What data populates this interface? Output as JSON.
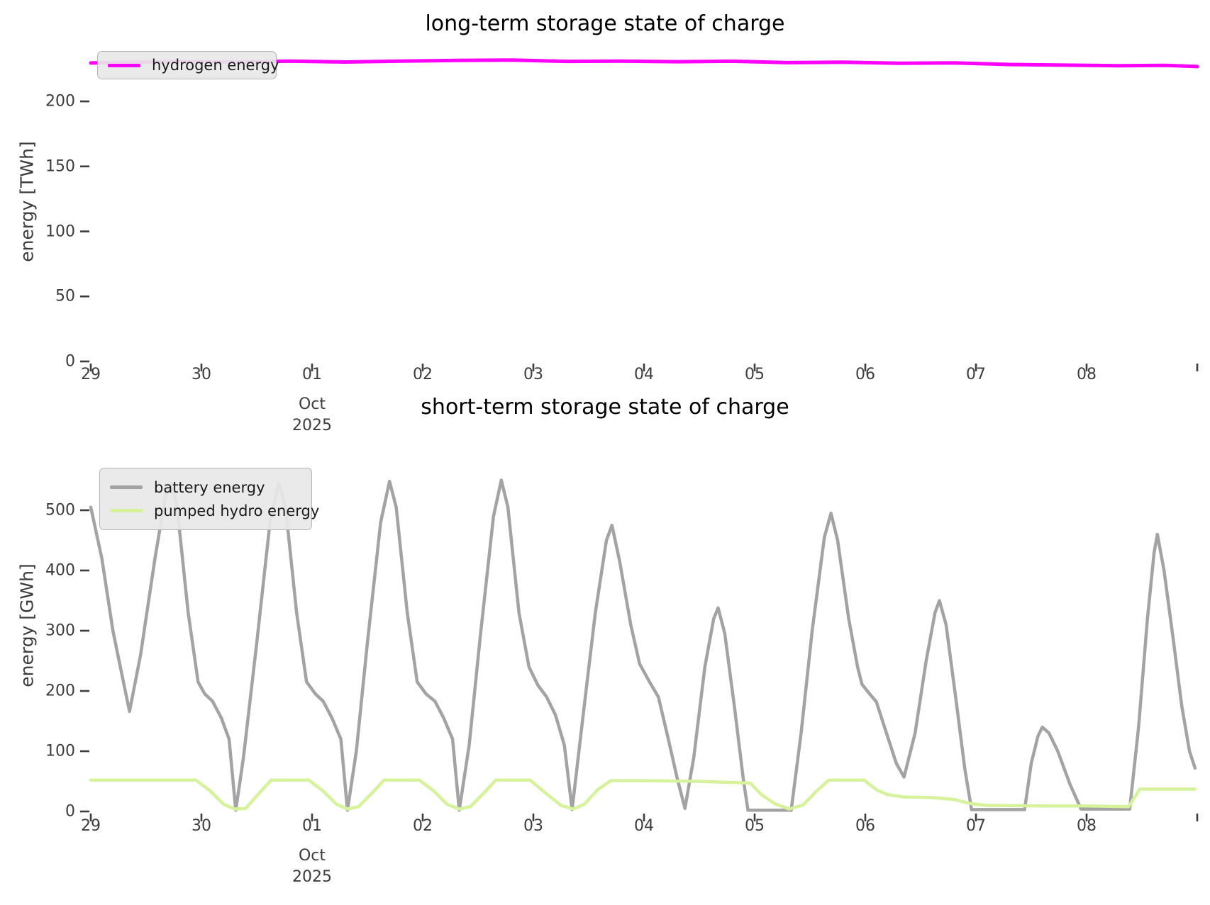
{
  "chart_data": [
    {
      "type": "line",
      "title": "long-term storage state of charge",
      "ylabel": "energy [TWh]",
      "ylim": [
        0,
        248
      ],
      "xlim_days": [
        0,
        10
      ],
      "grid": false,
      "legend_position": "upper left",
      "x_tick_labels": [
        "29",
        "30",
        "01",
        "02",
        "03",
        "04",
        "05",
        "06",
        "07",
        "08"
      ],
      "x_month_label": [
        "Oct",
        "2025"
      ],
      "x_month_under": "01",
      "y_ticks": [
        0,
        50,
        100,
        150,
        200
      ],
      "series": [
        {
          "name": "hydrogen energy",
          "color": "#ff00ff",
          "unit": "TWh",
          "points_day_value": [
            [
              0,
              229.5
            ],
            [
              0.3,
              230.0
            ],
            [
              0.8,
              230.6
            ],
            [
              1.3,
              230.1
            ],
            [
              1.8,
              231.0
            ],
            [
              2.3,
              230.3
            ],
            [
              2.8,
              231.0
            ],
            [
              3.3,
              231.5
            ],
            [
              3.8,
              231.8
            ],
            [
              4.3,
              230.8
            ],
            [
              4.8,
              231.0
            ],
            [
              5.3,
              230.5
            ],
            [
              5.8,
              230.9
            ],
            [
              6.3,
              229.8
            ],
            [
              6.8,
              230.1
            ],
            [
              7.3,
              229.3
            ],
            [
              7.8,
              229.6
            ],
            [
              8.3,
              228.4
            ],
            [
              8.8,
              227.9
            ],
            [
              9.3,
              227.4
            ],
            [
              9.7,
              227.7
            ],
            [
              10,
              226.8
            ]
          ]
        }
      ]
    },
    {
      "type": "line",
      "title": "short-term storage state of charge",
      "ylabel": "energy [GWh]",
      "ylim": [
        0,
        627
      ],
      "xlim_days": [
        0,
        10
      ],
      "grid": false,
      "legend_position": "upper left",
      "x_tick_labels": [
        "29",
        "30",
        "01",
        "02",
        "03",
        "04",
        "05",
        "06",
        "07",
        "08"
      ],
      "x_month_label": [
        "Oct",
        "2025"
      ],
      "x_month_under": "01",
      "y_ticks": [
        0,
        100,
        200,
        300,
        400,
        500
      ],
      "series": [
        {
          "name": "battery energy",
          "color": "#a3a3a3",
          "unit": "GWh",
          "points_day_value": [
            [
              0,
              505
            ],
            [
              0.1,
              420
            ],
            [
              0.2,
              300
            ],
            [
              0.35,
              166
            ],
            [
              0.45,
              260
            ],
            [
              0.58,
              420
            ],
            [
              0.68,
              530
            ],
            [
              0.73,
              545
            ],
            [
              0.78,
              505
            ],
            [
              0.88,
              330
            ],
            [
              0.97,
              215
            ],
            [
              1.03,
              195
            ],
            [
              1.1,
              183
            ],
            [
              1.18,
              155
            ],
            [
              1.25,
              120
            ],
            [
              1.31,
              2
            ],
            [
              1.38,
              90
            ],
            [
              1.5,
              280
            ],
            [
              1.62,
              480
            ],
            [
              1.7,
              545
            ],
            [
              1.76,
              505
            ],
            [
              1.86,
              330
            ],
            [
              1.95,
              215
            ],
            [
              2.03,
              195
            ],
            [
              2.1,
              183
            ],
            [
              2.18,
              155
            ],
            [
              2.26,
              120
            ],
            [
              2.32,
              2
            ],
            [
              2.4,
              100
            ],
            [
              2.5,
              280
            ],
            [
              2.62,
              480
            ],
            [
              2.7,
              548
            ],
            [
              2.76,
              505
            ],
            [
              2.86,
              330
            ],
            [
              2.95,
              215
            ],
            [
              3.03,
              195
            ],
            [
              3.11,
              183
            ],
            [
              3.19,
              155
            ],
            [
              3.27,
              120
            ],
            [
              3.33,
              2
            ],
            [
              3.42,
              110
            ],
            [
              3.52,
              290
            ],
            [
              3.64,
              490
            ],
            [
              3.71,
              550
            ],
            [
              3.77,
              505
            ],
            [
              3.87,
              330
            ],
            [
              3.96,
              240
            ],
            [
              4.04,
              210
            ],
            [
              4.12,
              190
            ],
            [
              4.2,
              160
            ],
            [
              4.28,
              110
            ],
            [
              4.35,
              3
            ],
            [
              4.45,
              160
            ],
            [
              4.56,
              330
            ],
            [
              4.66,
              450
            ],
            [
              4.71,
              475
            ],
            [
              4.78,
              415
            ],
            [
              4.88,
              310
            ],
            [
              4.96,
              245
            ],
            [
              5.05,
              215
            ],
            [
              5.13,
              190
            ],
            [
              5.22,
              120
            ],
            [
              5.3,
              55
            ],
            [
              5.37,
              5
            ],
            [
              5.45,
              90
            ],
            [
              5.55,
              240
            ],
            [
              5.63,
              320
            ],
            [
              5.67,
              338
            ],
            [
              5.73,
              295
            ],
            [
              5.82,
              170
            ],
            [
              5.9,
              50
            ],
            [
              5.94,
              2
            ],
            [
              6.33,
              2
            ],
            [
              6.42,
              130
            ],
            [
              6.52,
              300
            ],
            [
              6.63,
              455
            ],
            [
              6.69,
              495
            ],
            [
              6.75,
              450
            ],
            [
              6.85,
              320
            ],
            [
              6.93,
              240
            ],
            [
              6.97,
              211
            ],
            [
              7.04,
              195
            ],
            [
              7.1,
              182
            ],
            [
              7.2,
              125
            ],
            [
              7.28,
              80
            ],
            [
              7.35,
              57
            ],
            [
              7.45,
              130
            ],
            [
              7.55,
              250
            ],
            [
              7.63,
              330
            ],
            [
              7.67,
              350
            ],
            [
              7.73,
              310
            ],
            [
              7.82,
              185
            ],
            [
              7.9,
              70
            ],
            [
              7.96,
              3
            ],
            [
              8.44,
              3
            ],
            [
              8.5,
              80
            ],
            [
              8.56,
              125
            ],
            [
              8.6,
              140
            ],
            [
              8.66,
              130
            ],
            [
              8.74,
              100
            ],
            [
              8.85,
              45
            ],
            [
              8.95,
              4
            ],
            [
              9.39,
              4
            ],
            [
              9.47,
              140
            ],
            [
              9.55,
              320
            ],
            [
              9.61,
              430
            ],
            [
              9.64,
              460
            ],
            [
              9.7,
              400
            ],
            [
              9.78,
              290
            ],
            [
              9.86,
              175
            ],
            [
              9.93,
              100
            ],
            [
              9.98,
              72
            ]
          ]
        },
        {
          "name": "pumped hydro energy",
          "color": "#d6f29b",
          "unit": "GWh",
          "points_day_value": [
            [
              0,
              52
            ],
            [
              0.95,
              52
            ],
            [
              1.08,
              34
            ],
            [
              1.2,
              12
            ],
            [
              1.3,
              4
            ],
            [
              1.4,
              5
            ],
            [
              1.52,
              30
            ],
            [
              1.63,
              52
            ],
            [
              1.97,
              52
            ],
            [
              2.1,
              34
            ],
            [
              2.22,
              12
            ],
            [
              2.32,
              4
            ],
            [
              2.42,
              8
            ],
            [
              2.55,
              32
            ],
            [
              2.65,
              52
            ],
            [
              2.97,
              52
            ],
            [
              3.1,
              34
            ],
            [
              3.22,
              12
            ],
            [
              3.33,
              4
            ],
            [
              3.43,
              8
            ],
            [
              3.56,
              32
            ],
            [
              3.66,
              52
            ],
            [
              3.97,
              52
            ],
            [
              4.1,
              32
            ],
            [
              4.25,
              10
            ],
            [
              4.36,
              4
            ],
            [
              4.46,
              12
            ],
            [
              4.58,
              36
            ],
            [
              4.7,
              51
            ],
            [
              5.0,
              51
            ],
            [
              5.5,
              50
            ],
            [
              5.96,
              47
            ],
            [
              6.06,
              28
            ],
            [
              6.18,
              13
            ],
            [
              6.31,
              4
            ],
            [
              6.44,
              11
            ],
            [
              6.56,
              34
            ],
            [
              6.67,
              52
            ],
            [
              6.99,
              52
            ],
            [
              7.1,
              36
            ],
            [
              7.2,
              28
            ],
            [
              7.35,
              24
            ],
            [
              7.6,
              23
            ],
            [
              7.8,
              20
            ],
            [
              7.95,
              13
            ],
            [
              8.1,
              10
            ],
            [
              8.6,
              9
            ],
            [
              9.0,
              9
            ],
            [
              9.38,
              8
            ],
            [
              9.48,
              37
            ],
            [
              9.98,
              37
            ]
          ]
        }
      ]
    }
  ]
}
